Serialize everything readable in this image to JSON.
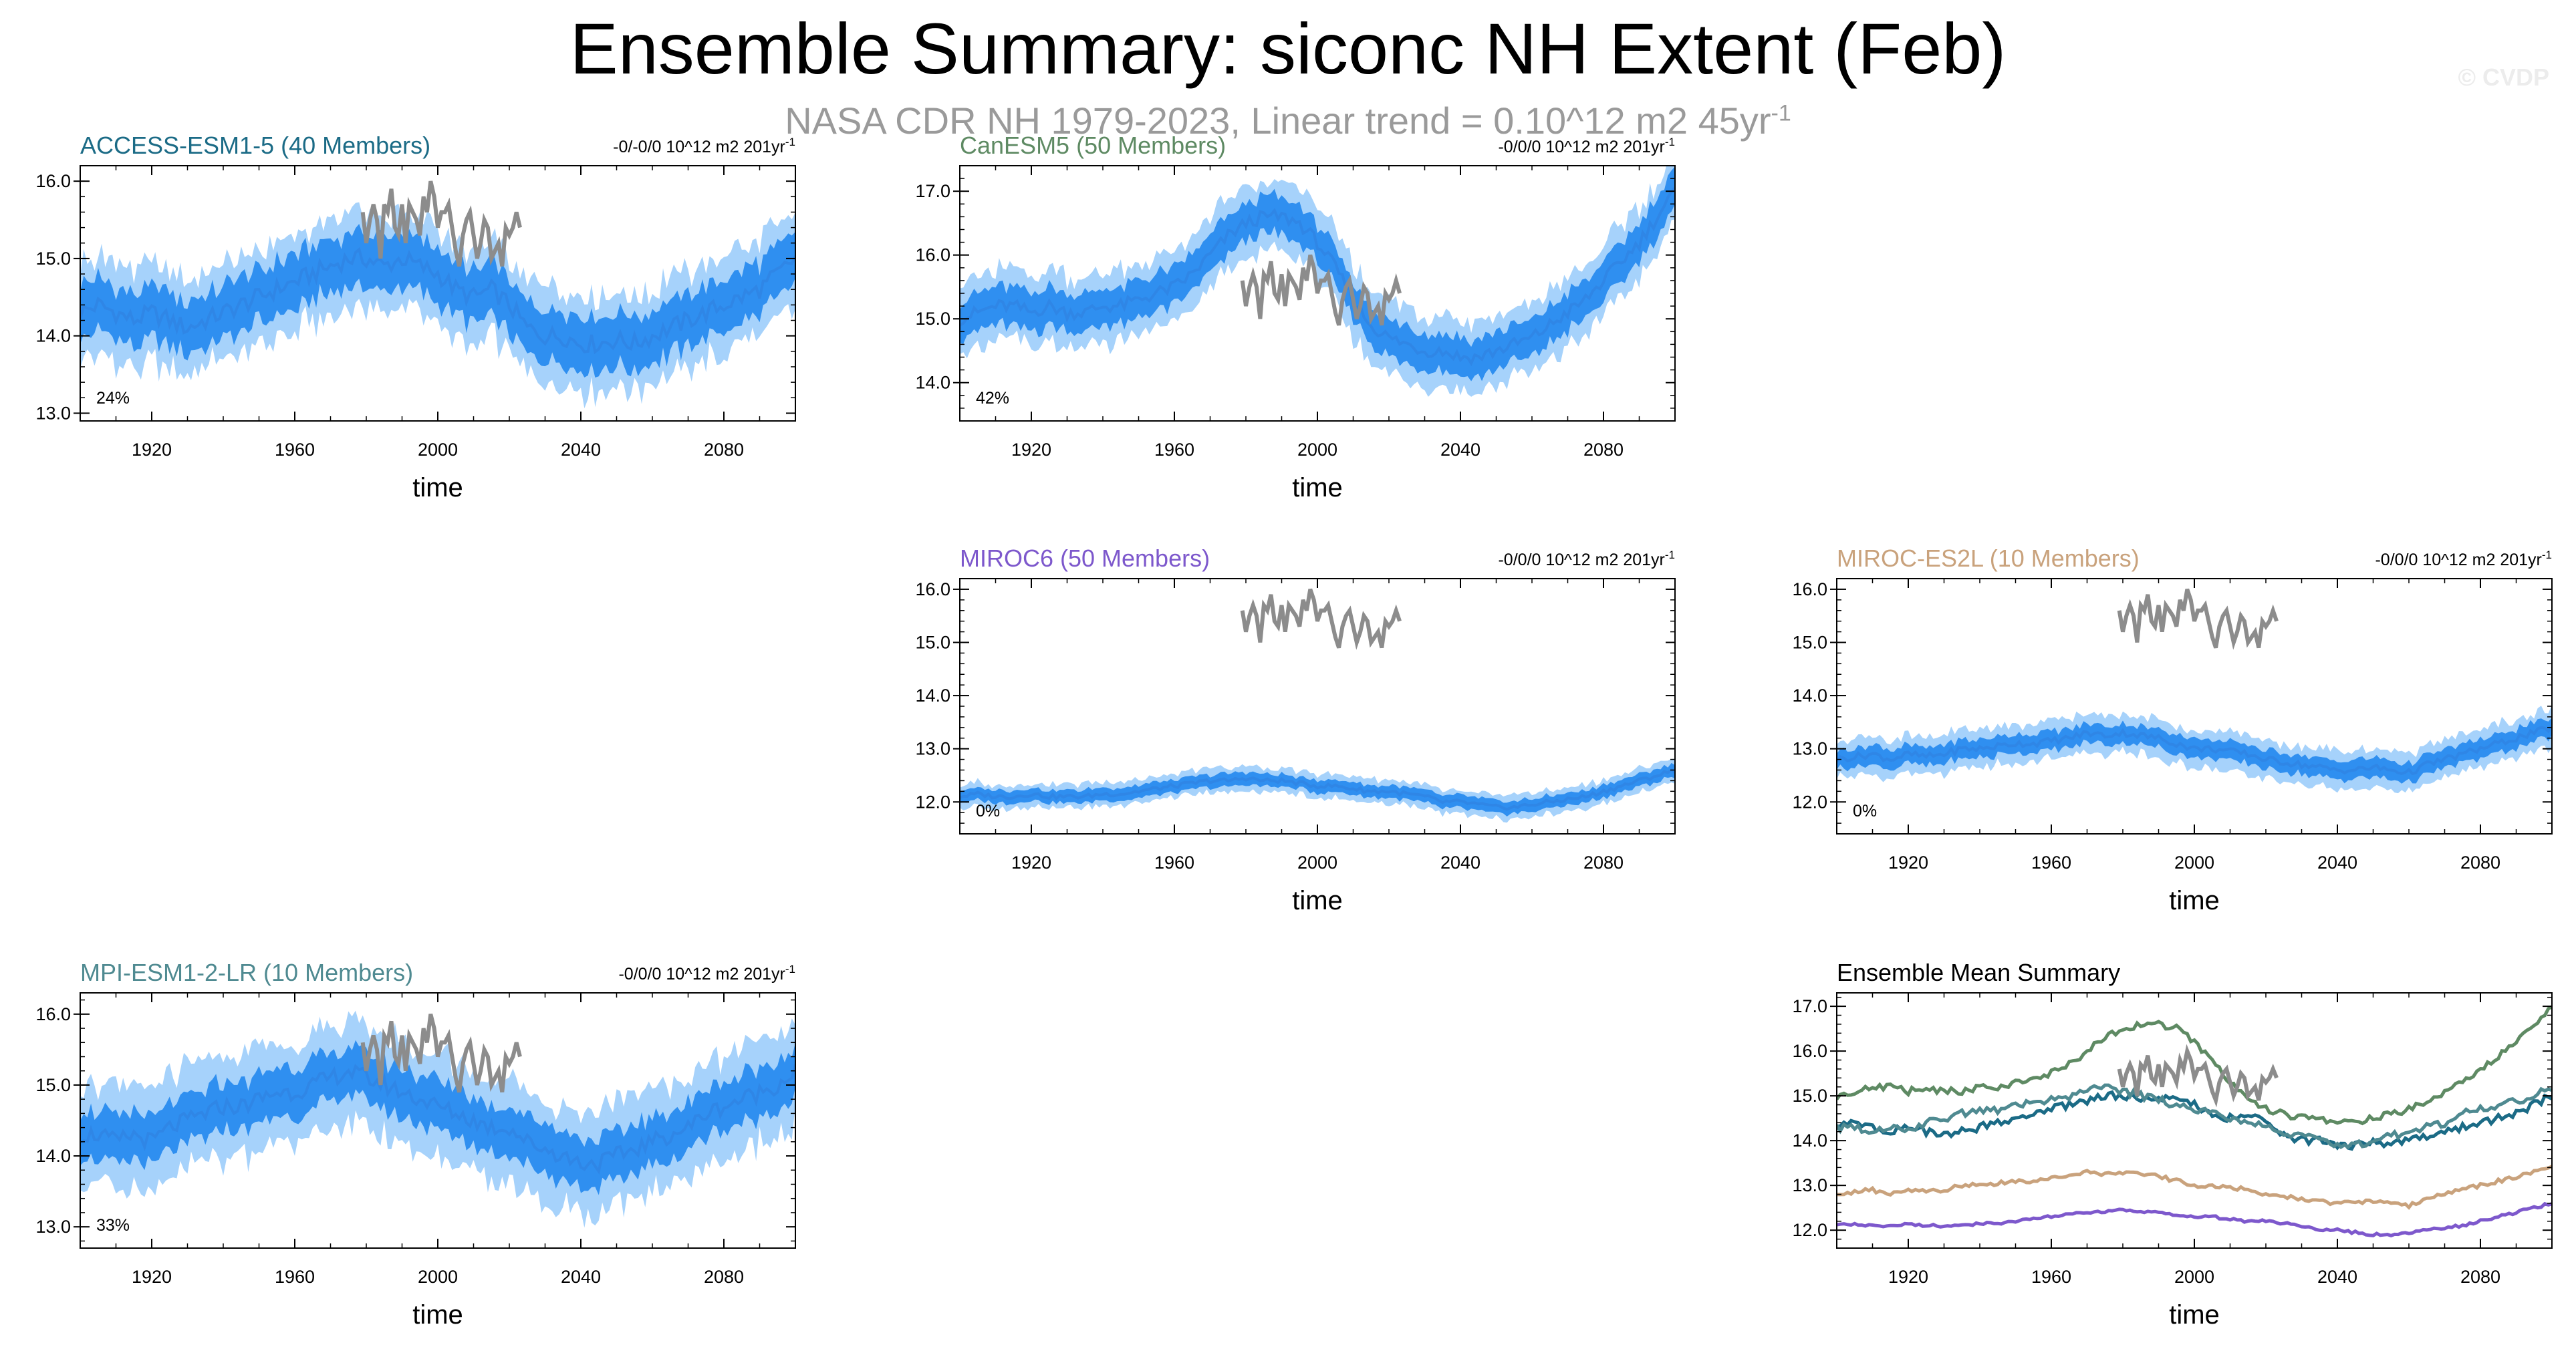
{
  "title": "Ensemble Summary: siconc NH Extent (Feb)",
  "subtitle": {
    "text": "NASA CDR NH 1979-2023, Linear trend = 0.10^12 m2 45yr",
    "superscript": "-1"
  },
  "watermark": "© CVDP",
  "colors": {
    "inner_band": "#2f8ff0",
    "outer_band": "#a6d2fb",
    "mean_line": "#2f86e6",
    "obs_line": "#8c8c8c",
    "access": "#1b6b86",
    "canesm": "#5e8a63",
    "miroc6": "#7d58cc",
    "mirocesl": "#c9a27c",
    "mpi": "#4f8a91"
  },
  "obs": {
    "name": "NASA CDR NH 1979-2023",
    "x": [
      1979,
      1980,
      1981,
      1982,
      1983,
      1984,
      1985,
      1986,
      1987,
      1988,
      1989,
      1990,
      1991,
      1992,
      1993,
      1994,
      1995,
      1996,
      1997,
      1998,
      1999,
      2000,
      2001,
      2002,
      2003,
      2004,
      2005,
      2006,
      2007,
      2008,
      2009,
      2010,
      2011,
      2012,
      2013,
      2014,
      2015,
      2016,
      2017,
      2018,
      2019,
      2020,
      2021,
      2022,
      2023
    ],
    "y": [
      15.6,
      15.2,
      15.5,
      15.7,
      15.5,
      15.0,
      15.7,
      15.6,
      15.9,
      15.4,
      15.3,
      15.7,
      15.2,
      15.7,
      15.6,
      15.5,
      15.3,
      15.8,
      15.6,
      16.0,
      15.8,
      15.4,
      15.6,
      15.6,
      15.7,
      15.4,
      15.1,
      14.9,
      15.3,
      15.5,
      15.6,
      15.3,
      15.0,
      15.2,
      15.5,
      15.4,
      15.0,
      15.1,
      15.2,
      14.9,
      15.4,
      15.3,
      15.4,
      15.6,
      15.4
    ]
  },
  "chart_data": [
    {
      "id": "access",
      "type": "line",
      "title": "ACCESS-ESM1-5 (40 Members)",
      "trend_label": "-0/-0/0 10^12 m2 201yr",
      "trend_sup": "-1",
      "percent_label": "24%",
      "xlabel": "time",
      "xlim": [
        1900,
        2100
      ],
      "ylim": [
        12.9,
        16.2
      ],
      "yticks": [
        "13.0",
        "14.0",
        "15.0",
        "16.0"
      ],
      "xticks": [
        "1920",
        "1960",
        "2000",
        "2040",
        "2080"
      ],
      "ensemble_mean": {
        "x": [
          1900,
          1905,
          1910,
          1915,
          1920,
          1925,
          1930,
          1935,
          1940,
          1945,
          1950,
          1955,
          1960,
          1965,
          1970,
          1975,
          1980,
          1985,
          1990,
          1995,
          2000,
          2005,
          2010,
          2015,
          2020,
          2025,
          2030,
          2035,
          2040,
          2045,
          2050,
          2055,
          2060,
          2065,
          2070,
          2075,
          2080,
          2085,
          2090,
          2095,
          2100
        ],
        "y": [
          14.3,
          14.4,
          14.3,
          14.2,
          14.3,
          14.2,
          14.1,
          14.2,
          14.3,
          14.4,
          14.5,
          14.6,
          14.7,
          14.8,
          14.9,
          15.0,
          15.0,
          14.9,
          15.0,
          14.9,
          14.8,
          14.6,
          14.5,
          14.6,
          14.4,
          14.1,
          14.0,
          14.0,
          13.9,
          13.9,
          13.95,
          13.9,
          14.0,
          14.1,
          14.2,
          14.3,
          14.4,
          14.5,
          14.6,
          14.8,
          15.0
        ],
        "inner_halfwidth": 0.35,
        "outer_halfwidth": 0.6
      },
      "show_obs": true
    },
    {
      "id": "canesm",
      "type": "line",
      "title": "CanESM5 (50 Members)",
      "trend_label": "-0/0/0 10^12 m2 201yr",
      "trend_sup": "-1",
      "percent_label": "42%",
      "xlabel": "time",
      "xlim": [
        1900,
        2100
      ],
      "ylim": [
        13.4,
        17.4
      ],
      "yticks": [
        "14.0",
        "15.0",
        "16.0",
        "17.0"
      ],
      "xticks": [
        "1920",
        "1960",
        "2000",
        "2040",
        "2080"
      ],
      "ensemble_mean": {
        "x": [
          1900,
          1905,
          1910,
          1915,
          1920,
          1925,
          1930,
          1935,
          1940,
          1945,
          1950,
          1955,
          1960,
          1965,
          1970,
          1975,
          1980,
          1985,
          1990,
          1995,
          2000,
          2005,
          2010,
          2015,
          2020,
          2025,
          2030,
          2035,
          2040,
          2045,
          2050,
          2055,
          2060,
          2065,
          2070,
          2075,
          2080,
          2085,
          2090,
          2095,
          2100
        ],
        "y": [
          15.0,
          15.1,
          15.2,
          15.2,
          15.1,
          15.2,
          15.1,
          15.1,
          15.2,
          15.2,
          15.3,
          15.4,
          15.5,
          15.7,
          16.0,
          16.3,
          16.5,
          16.6,
          16.6,
          16.5,
          16.2,
          15.8,
          15.3,
          14.9,
          14.7,
          14.6,
          14.5,
          14.5,
          14.4,
          14.4,
          14.5,
          14.6,
          14.7,
          14.9,
          15.1,
          15.3,
          15.6,
          15.9,
          16.2,
          16.6,
          17.0
        ],
        "inner_halfwidth": 0.3,
        "outer_halfwidth": 0.55
      },
      "show_obs": true
    },
    {
      "id": "miroc6",
      "type": "line",
      "title": "MIROC6 (50 Members)",
      "trend_label": "-0/0/0 10^12 m2 201yr",
      "trend_sup": "-1",
      "percent_label": "0%",
      "xlabel": "time",
      "xlim": [
        1900,
        2100
      ],
      "ylim": [
        11.4,
        16.2
      ],
      "yticks": [
        "12.0",
        "13.0",
        "14.0",
        "15.0",
        "16.0"
      ],
      "xticks": [
        "1920",
        "1960",
        "2000",
        "2040",
        "2080"
      ],
      "ensemble_mean": {
        "x": [
          1900,
          1905,
          1910,
          1915,
          1920,
          1925,
          1930,
          1935,
          1940,
          1945,
          1950,
          1955,
          1960,
          1965,
          1970,
          1975,
          1980,
          1985,
          1990,
          1995,
          2000,
          2005,
          2010,
          2015,
          2020,
          2025,
          2030,
          2035,
          2040,
          2045,
          2050,
          2055,
          2060,
          2065,
          2070,
          2075,
          2080,
          2085,
          2090,
          2095,
          2100
        ],
        "y": [
          12.1,
          12.15,
          12.1,
          12.1,
          12.15,
          12.1,
          12.1,
          12.1,
          12.15,
          12.15,
          12.2,
          12.25,
          12.3,
          12.35,
          12.4,
          12.4,
          12.45,
          12.4,
          12.4,
          12.35,
          12.3,
          12.3,
          12.25,
          12.2,
          12.2,
          12.15,
          12.1,
          12.0,
          12.0,
          11.95,
          11.9,
          11.9,
          11.95,
          12.0,
          12.05,
          12.1,
          12.2,
          12.3,
          12.4,
          12.5,
          12.6
        ],
        "inner_halfwidth": 0.12,
        "outer_halfwidth": 0.22
      },
      "show_obs": true
    },
    {
      "id": "mirocesl",
      "type": "line",
      "title": "MIROC-ES2L (10 Members)",
      "trend_label": "-0/0/0 10^12 m2 201yr",
      "trend_sup": "-1",
      "percent_label": "0%",
      "xlabel": "time",
      "xlim": [
        1900,
        2100
      ],
      "ylim": [
        11.4,
        16.2
      ],
      "yticks": [
        "12.0",
        "13.0",
        "14.0",
        "15.0",
        "16.0"
      ],
      "xticks": [
        "1920",
        "1960",
        "2000",
        "2040",
        "2080"
      ],
      "ensemble_mean": {
        "x": [
          1900,
          1905,
          1910,
          1915,
          1920,
          1925,
          1930,
          1935,
          1940,
          1945,
          1950,
          1955,
          1960,
          1965,
          1970,
          1975,
          1980,
          1985,
          1990,
          1995,
          2000,
          2005,
          2010,
          2015,
          2020,
          2025,
          2030,
          2035,
          2040,
          2045,
          2050,
          2055,
          2060,
          2065,
          2070,
          2075,
          2080,
          2085,
          2090,
          2095,
          2100
        ],
        "y": [
          12.8,
          12.85,
          12.9,
          12.8,
          12.9,
          12.85,
          12.9,
          13.0,
          13.0,
          13.05,
          13.1,
          13.1,
          13.15,
          13.2,
          13.3,
          13.25,
          13.3,
          13.25,
          13.2,
          13.1,
          13.0,
          13.0,
          12.95,
          12.9,
          12.8,
          12.75,
          12.7,
          12.65,
          12.6,
          12.6,
          12.65,
          12.6,
          12.55,
          12.7,
          12.8,
          12.9,
          13.0,
          13.1,
          13.2,
          13.3,
          13.4
        ],
        "inner_halfwidth": 0.18,
        "outer_halfwidth": 0.35
      },
      "show_obs": true
    },
    {
      "id": "mpi",
      "type": "line",
      "title": "MPI-ESM1-2-LR (10 Members)",
      "trend_label": "-0/0/0 10^12 m2 201yr",
      "trend_sup": "-1",
      "percent_label": "33%",
      "xlabel": "time",
      "xlim": [
        1900,
        2100
      ],
      "ylim": [
        12.7,
        16.3
      ],
      "yticks": [
        "13.0",
        "14.0",
        "15.0",
        "16.0"
      ],
      "xticks": [
        "1920",
        "1960",
        "2000",
        "2040",
        "2080"
      ],
      "ensemble_mean": {
        "x": [
          1900,
          1905,
          1910,
          1915,
          1920,
          1925,
          1930,
          1935,
          1940,
          1945,
          1950,
          1955,
          1960,
          1965,
          1970,
          1975,
          1980,
          1985,
          1990,
          1995,
          2000,
          2005,
          2010,
          2015,
          2020,
          2025,
          2030,
          2035,
          2040,
          2045,
          2050,
          2055,
          2060,
          2065,
          2070,
          2075,
          2080,
          2085,
          2090,
          2095,
          2100
        ],
        "y": [
          14.3,
          14.3,
          14.2,
          14.3,
          14.2,
          14.4,
          14.5,
          14.6,
          14.7,
          14.7,
          14.8,
          14.9,
          14.9,
          15.0,
          15.1,
          15.2,
          15.1,
          15.0,
          14.9,
          14.8,
          14.7,
          14.6,
          14.5,
          14.4,
          14.4,
          14.2,
          14.1,
          14.0,
          13.9,
          13.9,
          14.0,
          14.1,
          14.2,
          14.3,
          14.4,
          14.6,
          14.7,
          14.8,
          14.9,
          15.0,
          15.2
        ],
        "inner_halfwidth": 0.35,
        "outer_halfwidth": 0.7
      },
      "show_obs": true
    },
    {
      "id": "summary",
      "type": "line",
      "title": "Ensemble Mean Summary",
      "xlabel": "time",
      "xlim": [
        1900,
        2100
      ],
      "ylim": [
        11.6,
        17.3
      ],
      "yticks": [
        "12.0",
        "13.0",
        "14.0",
        "15.0",
        "16.0",
        "17.0"
      ],
      "xticks": [
        "1920",
        "1960",
        "2000",
        "2040",
        "2080"
      ],
      "series": [
        {
          "name": "ACCESS-ESM1-5",
          "color_key": "access",
          "source": "access"
        },
        {
          "name": "CanESM5",
          "color_key": "canesm",
          "source": "canesm"
        },
        {
          "name": "MIROC6",
          "color_key": "miroc6",
          "source": "miroc6"
        },
        {
          "name": "MIROC-ES2L",
          "color_key": "mirocesl",
          "source": "mirocesl"
        },
        {
          "name": "MPI-ESM1-2-LR",
          "color_key": "mpi",
          "source": "mpi"
        }
      ],
      "show_obs": true
    }
  ]
}
